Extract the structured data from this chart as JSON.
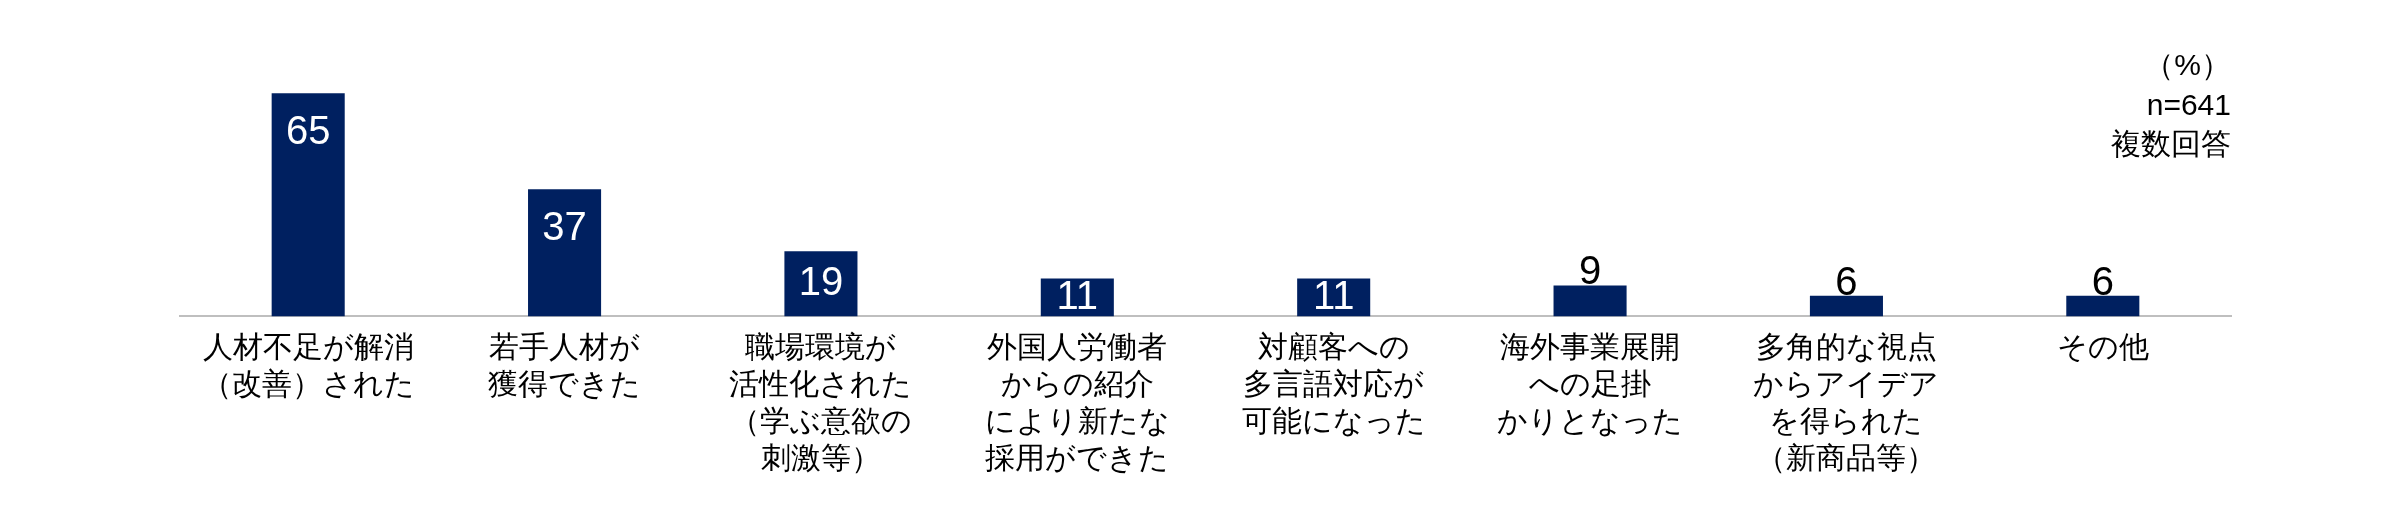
{
  "chart_data": {
    "type": "bar",
    "categories": [
      "人材不足が解消（改善）された",
      "若手人材が獲得できた",
      "職場環境が活性化された（学ぶ意欲の刺激等）",
      "外国人労働者からの紹介により新たな採用ができた",
      "対顧客への多言語対応が可能になった",
      "海外事業展開への足掛かりとなった",
      "多角的な視点からアイデアを得られた（新商品等）",
      "その他"
    ],
    "values": [
      65,
      37,
      19,
      11,
      11,
      9,
      6,
      6
    ],
    "color": "#002060",
    "data_labels": true,
    "annotations": [
      "（%）",
      "n=641",
      "複数回答"
    ]
  }
}
